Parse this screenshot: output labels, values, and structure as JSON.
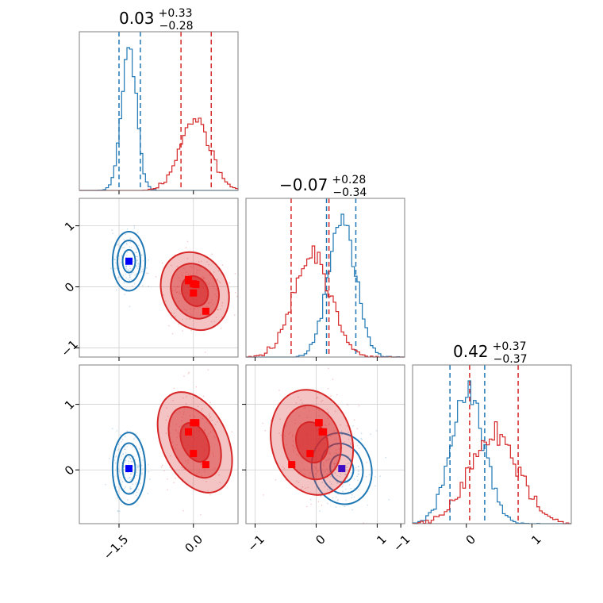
{
  "colors": {
    "blue": "#1f77b4",
    "red": "#d62728",
    "blue_marker": "#0000ff",
    "red_marker": "#ff0000"
  },
  "titles": [
    {
      "value": "0.03",
      "sup": "+0.33",
      "sub": "−0.28"
    },
    {
      "value": "−0.07",
      "sup": "+0.28",
      "sub": "−0.34"
    },
    {
      "value": "0.42",
      "sup": "+0.37",
      "sub": "−0.37"
    }
  ],
  "chart_data": {
    "type": "corner",
    "grid": true,
    "parameters": [
      "p0",
      "p1",
      "p2"
    ],
    "ranges": [
      [
        -2.3,
        0.9
      ],
      [
        -1.15,
        1.45
      ],
      [
        -0.82,
        1.6
      ]
    ],
    "ticks": {
      "p0": {
        "values": [
          -1.5,
          0.0
        ],
        "labels": [
          "−1.5",
          "0.0"
        ]
      },
      "p1": {
        "values": [
          -1,
          0,
          1
        ],
        "labels": [
          "−1",
          "0",
          "1"
        ]
      },
      "p2": {
        "values": [
          -1,
          0,
          1
        ],
        "labels": [
          "−1",
          "0",
          "1"
        ]
      },
      "p1_as_y": {
        "values": [
          -1,
          0,
          1
        ],
        "labels": [
          "−1",
          "0",
          "1"
        ]
      },
      "p2_as_y": {
        "values": [
          0,
          1
        ],
        "labels": [
          "0",
          "1"
        ]
      }
    },
    "series": [
      {
        "name": "blue",
        "color": "#1f77b4",
        "means": [
          -1.3,
          0.42,
          0.02
        ],
        "sigmas": [
          0.15,
          0.22,
          0.25
        ],
        "quantile_lines": {
          "p0": [
            -1.5,
            -1.07
          ],
          "p1": [
            0.17,
            0.65
          ],
          "p2": [
            -0.25,
            0.28
          ]
        },
        "markers": [
          [
            -1.3,
            0.42,
            0.02
          ]
        ],
        "filled": false
      },
      {
        "name": "red",
        "color": "#d62728",
        "means": [
          0.03,
          -0.07,
          0.42
        ],
        "sigmas": [
          0.3,
          0.3,
          0.37
        ],
        "quantile_lines": {
          "p0": [
            -0.25,
            0.36
          ],
          "p1": [
            -0.41,
            0.21
          ],
          "p2": [
            0.05,
            0.79
          ]
        },
        "markers": [
          [
            -0.1,
            0.1,
            0.58
          ],
          [
            0.0,
            0.05,
            0.72
          ],
          [
            0.0,
            -0.1,
            0.25
          ],
          [
            0.25,
            -0.4,
            0.08
          ],
          [
            -0.1,
            0.12,
            0.58
          ],
          [
            0.05,
            0.04,
            0.72
          ]
        ],
        "filled": true
      }
    ]
  }
}
